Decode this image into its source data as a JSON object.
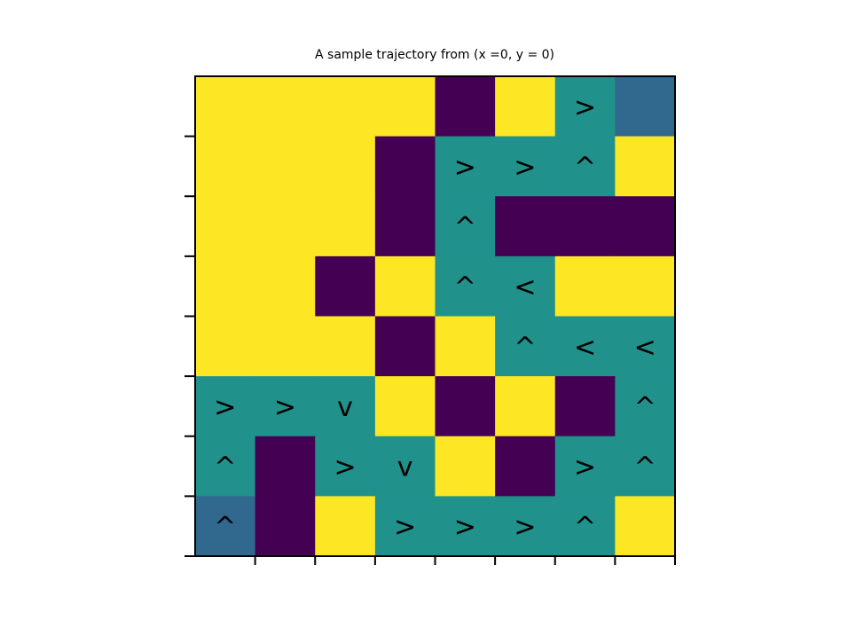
{
  "chart_data": {
    "type": "heatmap",
    "title": "A sample trajectory from (x =0, y = 0)",
    "xlabel": "",
    "ylabel": "",
    "grid": false,
    "rows": 8,
    "cols": 8,
    "colors": {
      "0": "#440154",
      "1": "#31688e",
      "2": "#21918c",
      "3": "#fde725"
    },
    "frame_color": "#000000",
    "cells": [
      [
        3,
        3,
        3,
        3,
        0,
        3,
        2,
        1
      ],
      [
        3,
        3,
        3,
        0,
        2,
        2,
        2,
        3
      ],
      [
        3,
        3,
        3,
        0,
        2,
        0,
        0,
        0
      ],
      [
        3,
        3,
        0,
        3,
        2,
        2,
        3,
        3
      ],
      [
        3,
        3,
        3,
        0,
        3,
        2,
        2,
        2
      ],
      [
        2,
        2,
        2,
        3,
        0,
        3,
        0,
        2
      ],
      [
        2,
        0,
        2,
        2,
        3,
        0,
        2,
        2
      ],
      [
        1,
        0,
        3,
        2,
        2,
        2,
        2,
        3
      ]
    ],
    "arrows": [
      [
        "",
        "",
        "",
        "",
        "",
        "",
        ">",
        ""
      ],
      [
        "",
        "",
        "",
        "",
        ">",
        ">",
        "^",
        ""
      ],
      [
        "",
        "",
        "",
        "",
        "^",
        "",
        "",
        ""
      ],
      [
        "",
        "",
        "",
        "",
        "^",
        "<",
        "",
        ""
      ],
      [
        "",
        "",
        "",
        "",
        "",
        "^",
        "<",
        "<"
      ],
      [
        ">",
        ">",
        "v",
        "",
        "",
        "",
        "",
        "^"
      ],
      [
        "^",
        "",
        ">",
        "v",
        "",
        "",
        ">",
        "^"
      ],
      [
        "^",
        "",
        "",
        ">",
        ">",
        ">",
        "^",
        ""
      ]
    ]
  }
}
